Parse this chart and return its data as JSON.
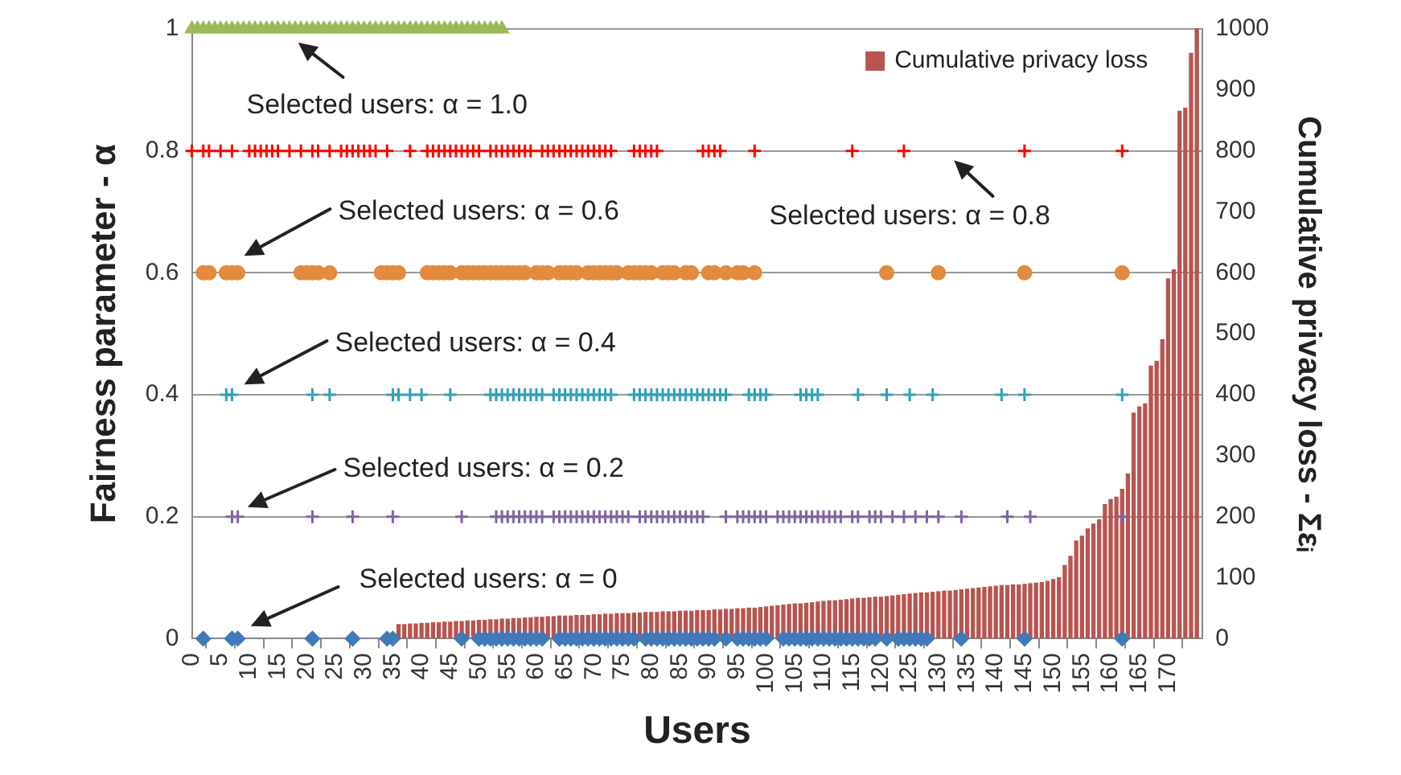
{
  "chart_data": {
    "type": "bar",
    "xlabel": "Users",
    "ylabel": "Fairness parameter - α",
    "y2label": "Cumulative privacy loss - Σεᵢ",
    "xlim": [
      0,
      176
    ],
    "xticks": [
      0,
      5,
      10,
      15,
      20,
      25,
      30,
      35,
      40,
      45,
      50,
      55,
      60,
      65,
      70,
      75,
      80,
      85,
      90,
      95,
      100,
      105,
      110,
      115,
      120,
      125,
      130,
      135,
      140,
      145,
      150,
      155,
      160,
      165,
      170
    ],
    "ylim": [
      0,
      1
    ],
    "yticks": [
      0,
      0.2,
      0.4,
      0.6,
      0.8,
      1
    ],
    "y2lim": [
      0,
      1000
    ],
    "y2ticks": [
      0,
      100,
      200,
      300,
      400,
      500,
      600,
      700,
      800,
      900,
      1000
    ],
    "grid": "y",
    "legend": "top right",
    "series": [
      {
        "name": "Cumulative privacy loss",
        "color": "#b85450",
        "axis": "y2",
        "x": [
          36,
          37,
          38,
          39,
          40,
          41,
          42,
          43,
          44,
          45,
          46,
          47,
          48,
          49,
          50,
          51,
          52,
          53,
          54,
          55,
          56,
          57,
          58,
          59,
          60,
          61,
          62,
          63,
          64,
          65,
          66,
          67,
          68,
          69,
          70,
          71,
          72,
          73,
          74,
          75,
          76,
          77,
          78,
          79,
          80,
          81,
          82,
          83,
          84,
          85,
          86,
          87,
          88,
          89,
          90,
          91,
          92,
          93,
          94,
          95,
          96,
          97,
          98,
          99,
          100,
          101,
          102,
          103,
          104,
          105,
          106,
          107,
          108,
          109,
          110,
          111,
          112,
          113,
          114,
          115,
          116,
          117,
          118,
          119,
          120,
          121,
          122,
          123,
          124,
          125,
          126,
          127,
          128,
          129,
          130,
          131,
          132,
          133,
          134,
          135,
          136,
          137,
          138,
          139,
          140,
          141,
          142,
          143,
          144,
          145,
          146,
          147,
          148,
          149,
          150,
          151,
          152,
          153,
          154,
          155,
          156,
          157,
          158,
          159,
          160,
          161,
          162,
          163,
          164,
          165,
          166,
          167,
          168,
          169,
          170,
          171,
          172,
          173,
          174,
          175
        ],
        "values": [
          23,
          23,
          24,
          24,
          25,
          25,
          26,
          26,
          27,
          27,
          28,
          28,
          29,
          29,
          30,
          30,
          31,
          31,
          32,
          32,
          33,
          33,
          34,
          34,
          35,
          35,
          36,
          36,
          37,
          37,
          37,
          38,
          38,
          38,
          39,
          39,
          40,
          40,
          41,
          41,
          41,
          42,
          42,
          43,
          43,
          43,
          44,
          44,
          44,
          45,
          45,
          45,
          46,
          46,
          46,
          47,
          47,
          48,
          48,
          49,
          49,
          50,
          50,
          51,
          52,
          53,
          54,
          55,
          56,
          57,
          57,
          58,
          59,
          60,
          61,
          62,
          62,
          63,
          64,
          65,
          66,
          66,
          67,
          68,
          68,
          69,
          70,
          71,
          72,
          73,
          74,
          75,
          75,
          76,
          77,
          78,
          78,
          79,
          80,
          81,
          82,
          83,
          84,
          85,
          86,
          87,
          87,
          88,
          88,
          89,
          90,
          91,
          92,
          94,
          97,
          100,
          120,
          135,
          160,
          168,
          180,
          188,
          195,
          220,
          228,
          232,
          245,
          270,
          370,
          380,
          385,
          447,
          455,
          490,
          590,
          605,
          865,
          870,
          960,
          1000
        ]
      },
      {
        "type": "scatter",
        "marker": "triangle",
        "color": "#9bbb59",
        "x": [
          0,
          1,
          2,
          3,
          4,
          5,
          6,
          7,
          8,
          9,
          10,
          11,
          12,
          13,
          14,
          15,
          16,
          17,
          18,
          19,
          20,
          21,
          22,
          23,
          24,
          25,
          26,
          27,
          28,
          29,
          30,
          31,
          32,
          33,
          34,
          35,
          36,
          37,
          38,
          39,
          40,
          41,
          42,
          43,
          44,
          45,
          46,
          47,
          48,
          49,
          50,
          51,
          52,
          53,
          54
        ],
        "values": [
          1,
          1,
          1,
          1,
          1,
          1,
          1,
          1,
          1,
          1,
          1,
          1,
          1,
          1,
          1,
          1,
          1,
          1,
          1,
          1,
          1,
          1,
          1,
          1,
          1,
          1,
          1,
          1,
          1,
          1,
          1,
          1,
          1,
          1,
          1,
          1,
          1,
          1,
          1,
          1,
          1,
          1,
          1,
          1,
          1,
          1,
          1,
          1,
          1,
          1,
          1,
          1,
          1,
          1,
          1
        ]
      },
      {
        "type": "scatter",
        "marker": "cross",
        "color": "#ff0000",
        "x": [
          0,
          2,
          3,
          5,
          7,
          10,
          11,
          12,
          13,
          14,
          15,
          17,
          19,
          21,
          22,
          24,
          26,
          27,
          28,
          29,
          30,
          31,
          32,
          34,
          38,
          41,
          42,
          43,
          44,
          45,
          46,
          47,
          48,
          49,
          50,
          52,
          53,
          54,
          55,
          56,
          57,
          58,
          59,
          61,
          62,
          63,
          64,
          65,
          66,
          67,
          68,
          69,
          70,
          71,
          72,
          73,
          77,
          78,
          79,
          80,
          81,
          89,
          90,
          91,
          92,
          98,
          115,
          124,
          145,
          162
        ],
        "values": [
          0.8,
          0.8,
          0.8,
          0.8,
          0.8,
          0.8,
          0.8,
          0.8,
          0.8,
          0.8,
          0.8,
          0.8,
          0.8,
          0.8,
          0.8,
          0.8,
          0.8,
          0.8,
          0.8,
          0.8,
          0.8,
          0.8,
          0.8,
          0.8,
          0.8,
          0.8,
          0.8,
          0.8,
          0.8,
          0.8,
          0.8,
          0.8,
          0.8,
          0.8,
          0.8,
          0.8,
          0.8,
          0.8,
          0.8,
          0.8,
          0.8,
          0.8,
          0.8,
          0.8,
          0.8,
          0.8,
          0.8,
          0.8,
          0.8,
          0.8,
          0.8,
          0.8,
          0.8,
          0.8,
          0.8,
          0.8,
          0.8,
          0.8,
          0.8,
          0.8,
          0.8,
          0.8,
          0.8,
          0.8,
          0.8,
          0.8,
          0.8,
          0.8,
          0.8,
          0.8
        ]
      },
      {
        "type": "scatter",
        "marker": "circle",
        "color": "#e38a3e",
        "x": [
          2,
          3,
          6,
          7,
          8,
          19,
          20,
          21,
          22,
          24,
          33,
          34,
          35,
          36,
          41,
          42,
          43,
          44,
          45,
          47,
          48,
          49,
          50,
          51,
          52,
          53,
          54,
          55,
          56,
          57,
          58,
          60,
          61,
          62,
          64,
          65,
          66,
          67,
          69,
          70,
          71,
          72,
          73,
          74,
          76,
          77,
          78,
          79,
          80,
          82,
          83,
          84,
          86,
          87,
          90,
          91,
          93,
          95,
          96,
          98,
          121,
          130,
          145,
          162
        ],
        "values": [
          0.6,
          0.6,
          0.6,
          0.6,
          0.6,
          0.6,
          0.6,
          0.6,
          0.6,
          0.6,
          0.6,
          0.6,
          0.6,
          0.6,
          0.6,
          0.6,
          0.6,
          0.6,
          0.6,
          0.6,
          0.6,
          0.6,
          0.6,
          0.6,
          0.6,
          0.6,
          0.6,
          0.6,
          0.6,
          0.6,
          0.6,
          0.6,
          0.6,
          0.6,
          0.6,
          0.6,
          0.6,
          0.6,
          0.6,
          0.6,
          0.6,
          0.6,
          0.6,
          0.6,
          0.6,
          0.6,
          0.6,
          0.6,
          0.6,
          0.6,
          0.6,
          0.6,
          0.6,
          0.6,
          0.6,
          0.6,
          0.6,
          0.6,
          0.6,
          0.6,
          0.6,
          0.6,
          0.6,
          0.6
        ]
      },
      {
        "type": "scatter",
        "marker": "cross",
        "color": "#31a0b8",
        "x": [
          6,
          7,
          21,
          24,
          35,
          36,
          38,
          40,
          45,
          52,
          53,
          54,
          55,
          56,
          57,
          58,
          59,
          60,
          61,
          63,
          64,
          65,
          66,
          67,
          68,
          69,
          70,
          71,
          72,
          73,
          77,
          78,
          79,
          80,
          81,
          82,
          83,
          84,
          85,
          86,
          87,
          88,
          89,
          90,
          91,
          92,
          93,
          97,
          98,
          99,
          100,
          106,
          107,
          108,
          109,
          116,
          121,
          125,
          129,
          141,
          145,
          162
        ],
        "values": [
          0.4,
          0.4,
          0.4,
          0.4,
          0.4,
          0.4,
          0.4,
          0.4,
          0.4,
          0.4,
          0.4,
          0.4,
          0.4,
          0.4,
          0.4,
          0.4,
          0.4,
          0.4,
          0.4,
          0.4,
          0.4,
          0.4,
          0.4,
          0.4,
          0.4,
          0.4,
          0.4,
          0.4,
          0.4,
          0.4,
          0.4,
          0.4,
          0.4,
          0.4,
          0.4,
          0.4,
          0.4,
          0.4,
          0.4,
          0.4,
          0.4,
          0.4,
          0.4,
          0.4,
          0.4,
          0.4,
          0.4,
          0.4,
          0.4,
          0.4,
          0.4,
          0.4,
          0.4,
          0.4,
          0.4,
          0.4,
          0.4,
          0.4,
          0.4,
          0.4,
          0.4,
          0.4
        ]
      },
      {
        "type": "scatter",
        "marker": "cross",
        "color": "#8064a2",
        "x": [
          7,
          8,
          21,
          28,
          35,
          47,
          53,
          54,
          55,
          56,
          57,
          58,
          59,
          60,
          61,
          63,
          64,
          65,
          66,
          67,
          68,
          69,
          70,
          71,
          72,
          73,
          74,
          75,
          76,
          78,
          79,
          80,
          81,
          82,
          83,
          84,
          85,
          86,
          87,
          88,
          89,
          93,
          95,
          96,
          97,
          98,
          99,
          100,
          102,
          103,
          104,
          105,
          106,
          107,
          108,
          109,
          110,
          111,
          112,
          113,
          115,
          116,
          118,
          119,
          120,
          122,
          124,
          126,
          128,
          130,
          134,
          142,
          146,
          162
        ],
        "values": [
          0.2,
          0.2,
          0.2,
          0.2,
          0.2,
          0.2,
          0.2,
          0.2,
          0.2,
          0.2,
          0.2,
          0.2,
          0.2,
          0.2,
          0.2,
          0.2,
          0.2,
          0.2,
          0.2,
          0.2,
          0.2,
          0.2,
          0.2,
          0.2,
          0.2,
          0.2,
          0.2,
          0.2,
          0.2,
          0.2,
          0.2,
          0.2,
          0.2,
          0.2,
          0.2,
          0.2,
          0.2,
          0.2,
          0.2,
          0.2,
          0.2,
          0.2,
          0.2,
          0.2,
          0.2,
          0.2,
          0.2,
          0.2,
          0.2,
          0.2,
          0.2,
          0.2,
          0.2,
          0.2,
          0.2,
          0.2,
          0.2,
          0.2,
          0.2,
          0.2,
          0.2,
          0.2,
          0.2,
          0.2,
          0.2,
          0.2,
          0.2,
          0.2,
          0.2,
          0.2,
          0.2,
          0.2,
          0.2,
          0.2
        ]
      },
      {
        "type": "scatter",
        "marker": "diamond",
        "color": "#4279b8",
        "x": [
          2,
          7,
          8,
          21,
          28,
          34,
          35,
          47,
          50,
          51,
          52,
          53,
          54,
          55,
          56,
          57,
          58,
          59,
          60,
          61,
          64,
          65,
          66,
          67,
          68,
          69,
          70,
          71,
          72,
          73,
          74,
          75,
          76,
          77,
          79,
          80,
          81,
          82,
          83,
          84,
          85,
          86,
          87,
          88,
          89,
          90,
          91,
          93,
          95,
          96,
          97,
          98,
          99,
          100,
          103,
          104,
          105,
          106,
          107,
          108,
          109,
          110,
          111,
          112,
          113,
          114,
          115,
          116,
          117,
          118,
          119,
          121,
          123,
          124,
          125,
          126,
          127,
          128,
          134,
          145,
          162
        ],
        "values": [
          0,
          0,
          0,
          0,
          0,
          0,
          0,
          0,
          0,
          0,
          0,
          0,
          0,
          0,
          0,
          0,
          0,
          0,
          0,
          0,
          0,
          0,
          0,
          0,
          0,
          0,
          0,
          0,
          0,
          0,
          0,
          0,
          0,
          0,
          0,
          0,
          0,
          0,
          0,
          0,
          0,
          0,
          0,
          0,
          0,
          0,
          0,
          0,
          0,
          0,
          0,
          0,
          0,
          0,
          0,
          0,
          0,
          0,
          0,
          0,
          0,
          0,
          0,
          0,
          0,
          0,
          0,
          0,
          0,
          0,
          0,
          0,
          0,
          0,
          0,
          0,
          0,
          0,
          0,
          0,
          0
        ]
      }
    ],
    "annotations": [
      "Selected users: α = 1.0",
      "Selected users: α = 0.8",
      "Selected users: α = 0.6",
      "Selected users: α = 0.4",
      "Selected users: α = 0.2",
      "Selected users: α = 0"
    ]
  }
}
